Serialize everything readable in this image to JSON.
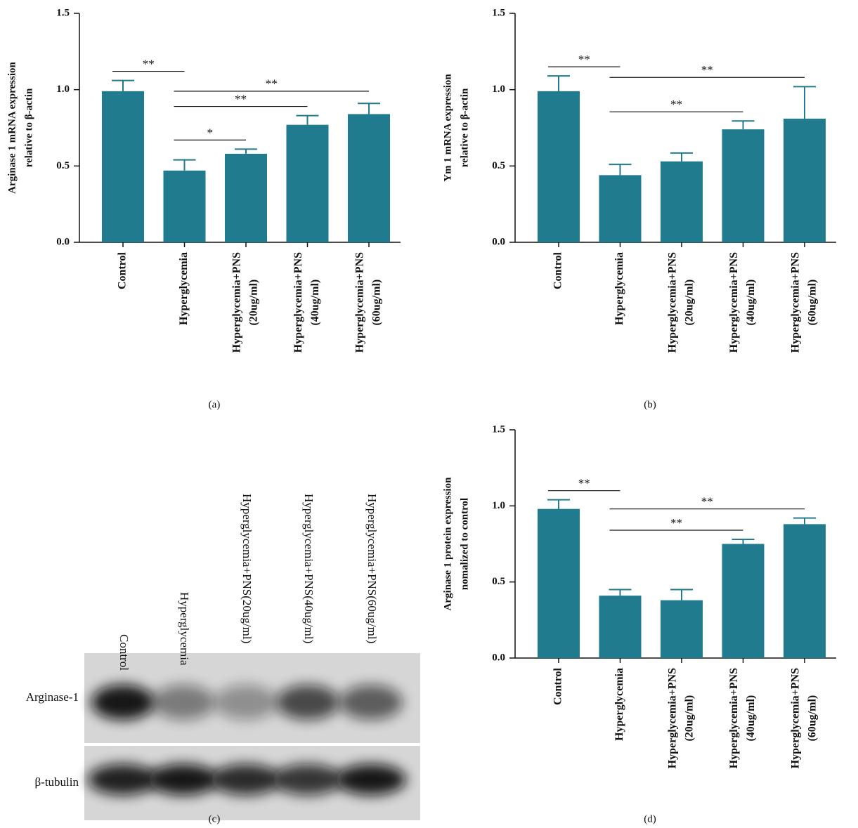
{
  "chart_data": [
    {
      "type": "bar",
      "panel_label": "(a)",
      "ylabel": [
        "Arginase 1 mRNA expression",
        "relative to β-actin"
      ],
      "categories": [
        [
          "Control"
        ],
        [
          "Hyperglycemia"
        ],
        [
          "Hyperglycemia+PNS",
          "(20ug/ml)"
        ],
        [
          "Hyperglycemia+PNS",
          "(40ug/ml)"
        ],
        [
          "Hyperglycemia+PNS",
          "(60ug/ml)"
        ]
      ],
      "values": [
        0.99,
        0.47,
        0.58,
        0.77,
        0.84
      ],
      "errors": [
        0.07,
        0.07,
        0.03,
        0.06,
        0.07
      ],
      "color": "#217b8f",
      "ylim": [
        0,
        1.5
      ],
      "yticks": [
        {
          "value": 0,
          "label": "0.0"
        },
        0.5,
        {
          "value": 1,
          "label": "1.0"
        },
        1.5
      ],
      "significance": [
        {
          "from": 0,
          "to": 1,
          "label": "**"
        },
        {
          "from": 1,
          "to": 4,
          "label": "**"
        },
        {
          "from": 1,
          "to": 3,
          "label": "**"
        },
        {
          "from": 1,
          "to": 2,
          "label": "*"
        }
      ]
    },
    {
      "type": "bar",
      "panel_label": "(b)",
      "ylabel": [
        "Ym 1 mRNA expression",
        "relative to β-actin"
      ],
      "categories": [
        [
          "Control"
        ],
        [
          "Hyperglycemia"
        ],
        [
          "Hyperglycemia+PNS",
          "(20ug/ml)"
        ],
        [
          "Hyperglycemia+PNS",
          "(40ug/ml)"
        ],
        [
          "Hyperglycemia+PNS",
          "(60ug/ml)"
        ]
      ],
      "values": [
        0.99,
        0.44,
        0.53,
        0.74,
        0.81
      ],
      "errors": [
        0.1,
        0.07,
        0.055,
        0.055,
        0.21
      ],
      "color": "#217b8f",
      "ylim": [
        0,
        1.5
      ],
      "yticks": [
        {
          "value": 0,
          "label": "0.0"
        },
        0.5,
        {
          "value": 1,
          "label": "1.0"
        },
        1.5
      ],
      "significance": [
        {
          "from": 0,
          "to": 1,
          "label": "**"
        },
        {
          "from": 1,
          "to": 4,
          "label": "**"
        },
        {
          "from": 1,
          "to": 3,
          "label": "**"
        }
      ]
    },
    {
      "type": "blot",
      "panel_label": "(c)",
      "lanes": [
        "Control",
        "Hyperglycemia",
        "Hyperglycemia+PNS(20ug/ml)",
        "Hyperglycemia+PNS(40ug/ml)",
        "Hyperglycemia+PNS(60ug/ml)"
      ],
      "rows": [
        "Arginase-1",
        "β-tubulin"
      ]
    },
    {
      "type": "bar",
      "panel_label": "(d)",
      "ylabel": [
        "Arginase 1 protein expression",
        "nomalized to control"
      ],
      "categories": [
        [
          "Control"
        ],
        [
          "Hyperglycemia"
        ],
        [
          "Hyperglycemia+PNS",
          "(20ug/ml)"
        ],
        [
          "Hyperglycemia+PNS",
          "(40ug/ml)"
        ],
        [
          "Hyperglycemia+PNS",
          "(60ug/ml)"
        ]
      ],
      "values": [
        0.98,
        0.41,
        0.38,
        0.75,
        0.88
      ],
      "errors": [
        0.06,
        0.04,
        0.07,
        0.03,
        0.04
      ],
      "color": "#217b8f",
      "ylim": [
        0,
        1.5
      ],
      "yticks": [
        {
          "value": 0,
          "label": "0.0"
        },
        0.5,
        {
          "value": 1,
          "label": "1.0"
        },
        1.5
      ],
      "significance": [
        {
          "from": 0,
          "to": 1,
          "label": "**"
        },
        {
          "from": 1,
          "to": 4,
          "label": "**"
        },
        {
          "from": 1,
          "to": 3,
          "label": "**"
        }
      ]
    }
  ]
}
